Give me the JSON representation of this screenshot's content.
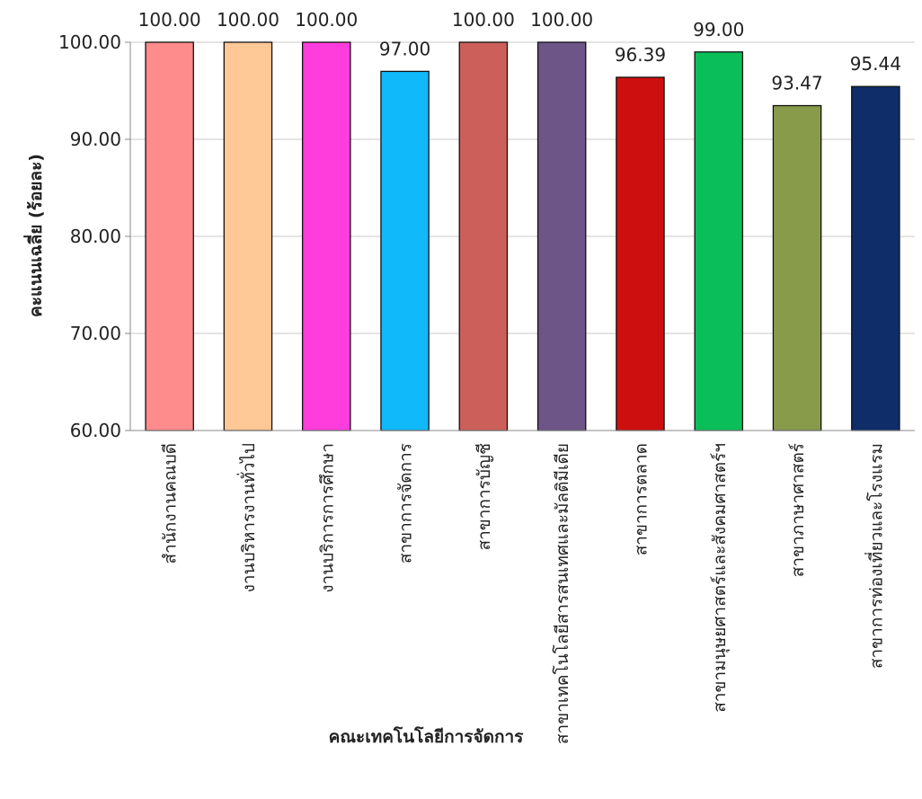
{
  "chart_data": {
    "type": "bar",
    "title": "",
    "xlabel": "คณะเทคโนโลยีการจัดการ",
    "ylabel": "คะแนนเฉลี่ย (ร้อยละ)",
    "ylim": [
      60,
      100
    ],
    "yticks": [
      "60.00",
      "70.00",
      "80.00",
      "90.00",
      "100.00"
    ],
    "grid": true,
    "categories": [
      "สำนักงานคณบดี",
      "งานบริหารงานทั่วไป",
      "งานบริการการศึกษา",
      "สาขาการจัดการ",
      "สาขาการบัญชี",
      "สาขาเทคโนโลยีสารสนเทศและมัลติมีเดีย",
      "สาขาการตลาด",
      "สาขามนุษยศาสตร์และสังคมศาสตร์ฯ",
      "สาขาภาษาศาสตร์",
      "สาขาการท่องเที่ยวและโรงแรม"
    ],
    "values": [
      100.0,
      100.0,
      100.0,
      97.0,
      100.0,
      100.0,
      96.39,
      99.0,
      93.47,
      95.44
    ],
    "value_labels": [
      "100.00",
      "100.00",
      "100.00",
      "97.00",
      "100.00",
      "100.00",
      "96.39",
      "99.00",
      "93.47",
      "95.44"
    ],
    "colors": [
      "#FF8C8C",
      "#FFC896",
      "#FF3CDC",
      "#0FB9FA",
      "#CD5F5A",
      "#6E5587",
      "#CD0F0F",
      "#0ABE5A",
      "#879B4B",
      "#0F2D69"
    ]
  }
}
